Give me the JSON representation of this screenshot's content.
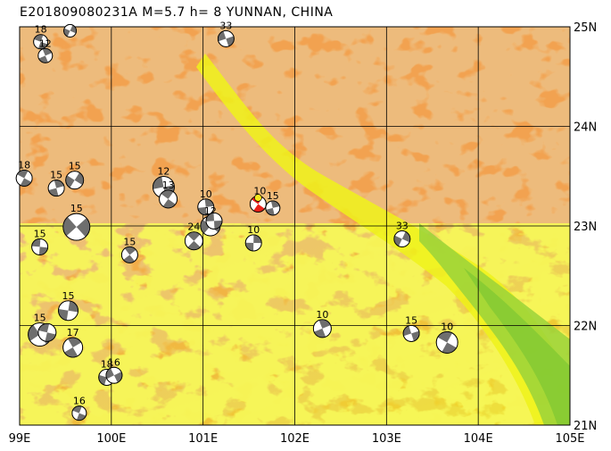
{
  "title": "E20180908023 1A M=5.7 h=  8 YUNNAN, CHINA",
  "title_display": "E201809080231A M=5.7 h=  8 YUNNAN, CHINA",
  "colors": {
    "land_base": "#f2a250",
    "land_dark": "#d9873a",
    "lowland_yellow": "#eef21a",
    "lowland_green": "#9ad23a",
    "grid": "#000000",
    "beach_dark": "#6e6e6e",
    "mainshock": "#e8201a",
    "mainshock_center": "#f5e81a"
  },
  "lon_labels": [
    "99E",
    "100E",
    "101E",
    "102E",
    "103E",
    "104E",
    "105E"
  ],
  "lat_labels": [
    "25N",
    "24N",
    "23N",
    "22N",
    "21N"
  ],
  "events": [
    {
      "lon": 99.23,
      "lat": 24.85,
      "label": "18",
      "size": 8
    },
    {
      "lon": 99.28,
      "lat": 24.71,
      "label": "12",
      "size": 8
    },
    {
      "lon": 99.55,
      "lat": 24.96,
      "label": "",
      "size": 7
    },
    {
      "lon": 101.25,
      "lat": 24.88,
      "label": "33",
      "size": 9
    },
    {
      "lon": 99.05,
      "lat": 23.48,
      "label": "18",
      "size": 9
    },
    {
      "lon": 99.4,
      "lat": 23.38,
      "label": "15",
      "size": 9
    },
    {
      "lon": 99.6,
      "lat": 23.46,
      "label": "15",
      "size": 10
    },
    {
      "lon": 100.57,
      "lat": 23.39,
      "label": "12",
      "size": 12
    },
    {
      "lon": 100.62,
      "lat": 23.27,
      "label": "13",
      "size": 10
    },
    {
      "lon": 101.03,
      "lat": 23.19,
      "label": "10",
      "size": 9
    },
    {
      "lon": 101.08,
      "lat": 23.0,
      "label": "12",
      "size": 11
    },
    {
      "lon": 101.12,
      "lat": 23.05,
      "label": "",
      "size": 9
    },
    {
      "lon": 100.9,
      "lat": 22.85,
      "label": "24",
      "size": 10
    },
    {
      "lon": 101.55,
      "lat": 22.83,
      "label": "10",
      "size": 9
    },
    {
      "lon": 99.62,
      "lat": 22.99,
      "label": "15",
      "size": 15
    },
    {
      "lon": 99.22,
      "lat": 22.79,
      "label": "15",
      "size": 9
    },
    {
      "lon": 100.2,
      "lat": 22.71,
      "label": "15",
      "size": 9
    },
    {
      "lon": 99.53,
      "lat": 22.15,
      "label": "15",
      "size": 11
    },
    {
      "lon": 99.22,
      "lat": 21.91,
      "label": "15",
      "size": 13
    },
    {
      "lon": 99.3,
      "lat": 21.93,
      "label": "",
      "size": 10
    },
    {
      "lon": 99.58,
      "lat": 21.78,
      "label": "17",
      "size": 11
    },
    {
      "lon": 99.95,
      "lat": 21.48,
      "label": "18",
      "size": 9
    },
    {
      "lon": 100.03,
      "lat": 21.5,
      "label": "16",
      "size": 9
    },
    {
      "lon": 99.65,
      "lat": 21.12,
      "label": "16",
      "size": 8
    },
    {
      "lon": 102.3,
      "lat": 21.97,
      "label": "10",
      "size": 10
    },
    {
      "lon": 103.17,
      "lat": 22.87,
      "label": "33",
      "size": 9
    },
    {
      "lon": 103.27,
      "lat": 21.92,
      "label": "15",
      "size": 9
    },
    {
      "lon": 103.66,
      "lat": 21.83,
      "label": "10",
      "size": 12
    },
    {
      "lon": 101.76,
      "lat": 23.18,
      "label": "15",
      "size": 8
    }
  ],
  "mainshock": {
    "lon": 101.6,
    "lat": 23.22,
    "label": "10",
    "size": 9
  },
  "map_bounds": {
    "lon_min": 99,
    "lon_max": 105,
    "lat_min": 21,
    "lat_max": 25
  }
}
